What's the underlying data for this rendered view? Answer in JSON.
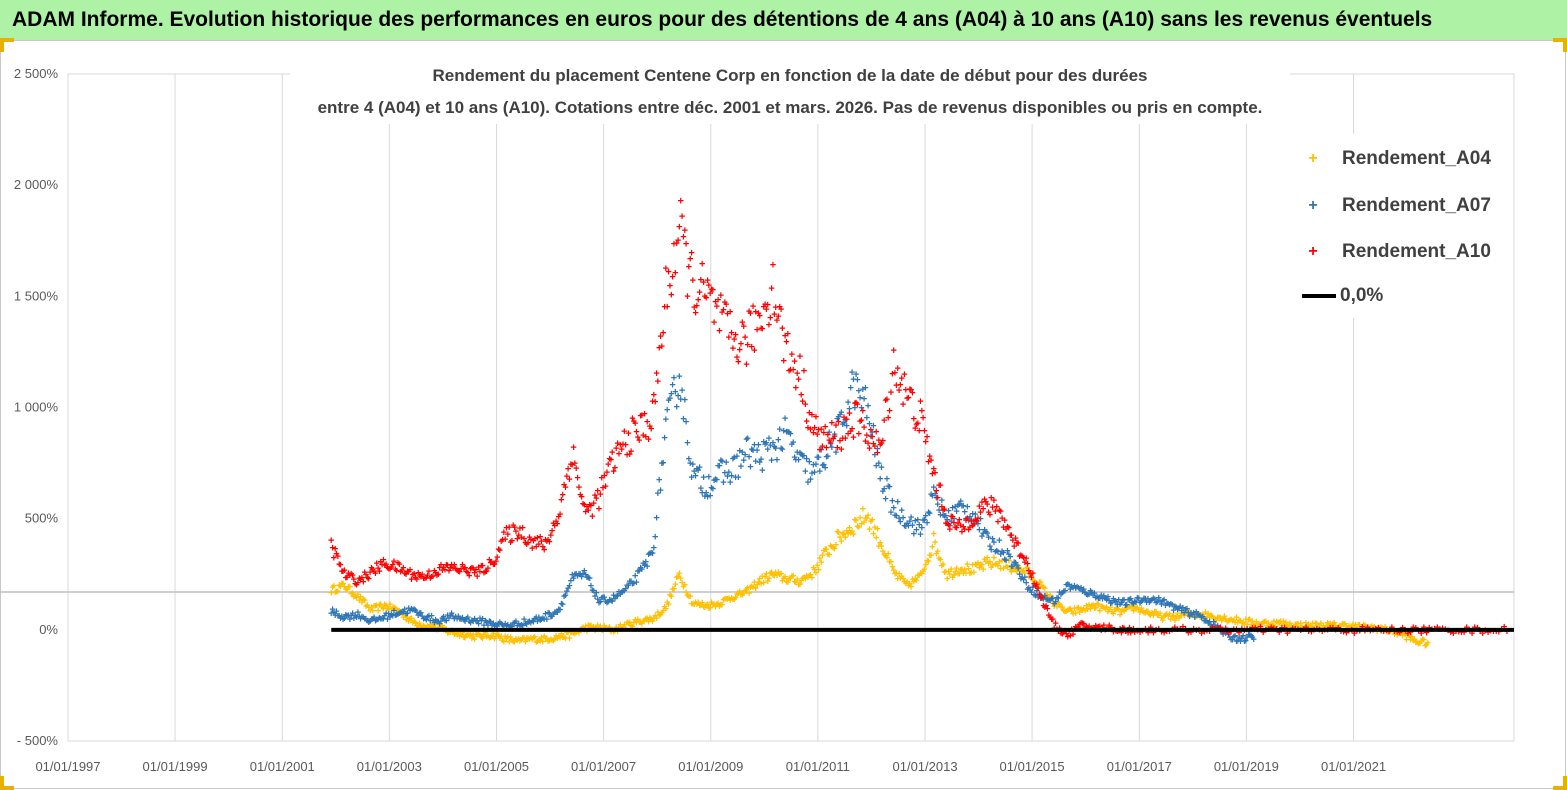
{
  "header": {
    "banner_title": "ADAM Informe. Evolution historique des performances en euros pour des détentions de 4 ans (A04) à 10 ans (A10) sans les revenus éventuels"
  },
  "colors": {
    "banner": "#aef2a6",
    "a04": "#ffc000",
    "a07": "#2e75b6",
    "a10": "#ff0000",
    "zero": "#000000",
    "grid": "#d9d9d9"
  },
  "chart_data": {
    "type": "scatter",
    "title_line1": "Rendement du placement Centene Corp en fonction de la date de début pour des durées",
    "title_line2": "entre 4 (A04) et 10 ans (A10). Cotations entre déc. 2001 et mars. 2026. Pas de revenus disponibles ou pris en compte.",
    "x_ticks": [
      "01/01/1997",
      "01/01/1999",
      "01/01/2001",
      "01/01/2003",
      "01/01/2005",
      "01/01/2007",
      "01/01/2009",
      "01/01/2011",
      "01/01/2013",
      "01/01/2015",
      "01/01/2017",
      "01/01/2019",
      "01/01/2021"
    ],
    "y_ticks": [
      "2 500%",
      "2 000%",
      "1 500%",
      "1 000%",
      "500%",
      "0%",
      "- 500%"
    ],
    "y_tick_values": [
      2500,
      2000,
      1500,
      1000,
      500,
      0,
      -500
    ],
    "xlim": [
      "1997-01-01",
      "2023-12-31"
    ],
    "ylim": [
      -500,
      2500
    ],
    "legend_position": "top-right",
    "series": [
      {
        "name": "Rendement_A04",
        "x": [
          "2001-12-01",
          "2002-03-01",
          "2002-06-01",
          "2002-09-01",
          "2002-12-01",
          "2003-03-01",
          "2003-06-01",
          "2003-09-01",
          "2003-12-01",
          "2004-03-01",
          "2004-06-01",
          "2004-09-01",
          "2004-12-01",
          "2005-03-01",
          "2005-06-01",
          "2005-09-01",
          "2005-12-01",
          "2006-03-01",
          "2006-06-01",
          "2006-09-01",
          "2006-12-01",
          "2007-03-01",
          "2007-06-01",
          "2007-09-01",
          "2007-12-01",
          "2008-03-01",
          "2008-06-01",
          "2008-09-01",
          "2008-12-01",
          "2009-03-01",
          "2009-06-01",
          "2009-09-01",
          "2009-12-01",
          "2010-03-01",
          "2010-06-01",
          "2010-09-01",
          "2010-12-01",
          "2011-03-01",
          "2011-06-01",
          "2011-09-01",
          "2011-12-01",
          "2012-03-01",
          "2012-06-01",
          "2012-09-01",
          "2012-12-01",
          "2013-03-01",
          "2013-06-01",
          "2013-09-01",
          "2013-12-01",
          "2014-03-01",
          "2014-06-01",
          "2014-09-01",
          "2014-12-01",
          "2015-03-01",
          "2015-06-01",
          "2015-09-01",
          "2015-12-01",
          "2016-03-01",
          "2016-06-01",
          "2016-09-01",
          "2016-12-01",
          "2017-03-01",
          "2017-06-01",
          "2017-09-01",
          "2017-12-01",
          "2018-03-01",
          "2018-06-01",
          "2018-09-01",
          "2018-12-01",
          "2019-03-01",
          "2019-06-01",
          "2019-09-01",
          "2019-12-01",
          "2020-03-01",
          "2020-06-01",
          "2020-09-01",
          "2020-12-01",
          "2021-03-01",
          "2021-06-01",
          "2021-09-01",
          "2021-12-01",
          "2022-03-01",
          "2022-06-01"
        ],
        "y": [
          180,
          200,
          150,
          90,
          110,
          90,
          40,
          20,
          10,
          -10,
          -20,
          -30,
          -20,
          -40,
          -50,
          -40,
          -40,
          -30,
          -20,
          10,
          10,
          0,
          20,
          40,
          50,
          100,
          250,
          120,
          110,
          120,
          150,
          170,
          220,
          250,
          230,
          220,
          260,
          350,
          420,
          470,
          520,
          400,
          260,
          200,
          240,
          400,
          250,
          280,
          270,
          300,
          300,
          280,
          260,
          200,
          120,
          80,
          90,
          110,
          90,
          80,
          100,
          80,
          60,
          60,
          70,
          70,
          60,
          50,
          40,
          30,
          30,
          30,
          20,
          20,
          20,
          20,
          20,
          10,
          10,
          0,
          -20,
          -50,
          -60
        ]
      },
      {
        "name": "Rendement_A07",
        "x": [
          "2001-12-01",
          "2002-03-01",
          "2002-06-01",
          "2002-09-01",
          "2002-12-01",
          "2003-03-01",
          "2003-06-01",
          "2003-09-01",
          "2003-12-01",
          "2004-03-01",
          "2004-06-01",
          "2004-09-01",
          "2004-12-01",
          "2005-03-01",
          "2005-06-01",
          "2005-09-01",
          "2005-12-01",
          "2006-03-01",
          "2006-06-01",
          "2006-09-01",
          "2006-12-01",
          "2007-03-01",
          "2007-06-01",
          "2007-09-01",
          "2007-12-01",
          "2008-03-01",
          "2008-06-01",
          "2008-09-01",
          "2008-12-01",
          "2009-03-01",
          "2009-06-01",
          "2009-09-01",
          "2009-12-01",
          "2010-03-01",
          "2010-06-01",
          "2010-09-01",
          "2010-12-01",
          "2011-03-01",
          "2011-06-01",
          "2011-09-01",
          "2011-12-01",
          "2012-03-01",
          "2012-06-01",
          "2012-09-01",
          "2012-12-01",
          "2013-03-01",
          "2013-06-01",
          "2013-09-01",
          "2013-12-01",
          "2014-03-01",
          "2014-06-01",
          "2014-09-01",
          "2014-12-01",
          "2015-03-01",
          "2015-06-01",
          "2015-09-01",
          "2015-12-01",
          "2016-03-01",
          "2016-06-01",
          "2016-09-01",
          "2016-12-01",
          "2017-03-01",
          "2017-06-01",
          "2017-09-01",
          "2017-12-01",
          "2018-03-01",
          "2018-06-01",
          "2018-09-01",
          "2018-12-01",
          "2019-03-01"
        ],
        "y": [
          80,
          60,
          70,
          40,
          60,
          80,
          90,
          60,
          40,
          60,
          50,
          40,
          30,
          20,
          30,
          40,
          60,
          90,
          230,
          250,
          130,
          140,
          180,
          250,
          350,
          900,
          1150,
          700,
          650,
          700,
          720,
          800,
          780,
          820,
          880,
          750,
          700,
          800,
          900,
          1100,
          1000,
          700,
          550,
          500,
          450,
          600,
          500,
          550,
          520,
          400,
          370,
          300,
          200,
          150,
          130,
          200,
          180,
          160,
          140,
          120,
          130,
          140,
          130,
          100,
          80,
          60,
          20,
          -30,
          -40,
          -30
        ]
      },
      {
        "name": "Rendement_A10",
        "x": [
          "2001-12-01",
          "2002-03-01",
          "2002-06-01",
          "2002-09-01",
          "2002-12-01",
          "2003-03-01",
          "2003-06-01",
          "2003-09-01",
          "2003-12-01",
          "2004-03-01",
          "2004-06-01",
          "2004-09-01",
          "2004-12-01",
          "2005-03-01",
          "2005-06-01",
          "2005-09-01",
          "2005-12-01",
          "2006-03-01",
          "2006-06-01",
          "2006-09-01",
          "2006-12-01",
          "2007-03-01",
          "2007-06-01",
          "2007-09-01",
          "2007-12-01",
          "2008-03-01",
          "2008-06-01",
          "2008-09-01",
          "2008-12-01",
          "2009-03-01",
          "2009-06-01",
          "2009-09-01",
          "2009-12-01",
          "2010-03-01",
          "2010-06-01",
          "2010-09-01",
          "2010-12-01",
          "2011-03-01",
          "2011-06-01",
          "2011-09-01",
          "2011-12-01",
          "2012-03-01",
          "2012-06-01",
          "2012-09-01",
          "2012-12-01",
          "2013-03-01",
          "2013-06-01",
          "2013-09-01",
          "2013-12-01",
          "2014-03-01",
          "2014-06-01",
          "2014-09-01",
          "2014-12-01",
          "2015-03-01",
          "2015-06-01",
          "2015-09-01",
          "2015-12-01",
          "2016-03-01",
          "2016-06-01",
          "2016-09-01",
          "2016-12-01",
          "2017-06-01",
          "2017-12-01",
          "2018-06-01",
          "2018-12-01",
          "2019-06-01",
          "2019-12-01",
          "2020-06-01",
          "2020-12-01",
          "2021-06-01",
          "2021-12-01",
          "2022-06-01",
          "2022-12-01",
          "2023-06-01",
          "2023-12-01"
        ],
        "y": [
          380,
          250,
          220,
          260,
          300,
          280,
          250,
          240,
          270,
          280,
          270,
          260,
          300,
          420,
          450,
          400,
          380,
          520,
          800,
          520,
          600,
          750,
          850,
          900,
          950,
          1500,
          1800,
          1550,
          1500,
          1400,
          1300,
          1300,
          1400,
          1550,
          1250,
          1150,
          900,
          850,
          880,
          950,
          900,
          800,
          1200,
          1050,
          950,
          700,
          500,
          450,
          520,
          560,
          520,
          400,
          300,
          150,
          20,
          -20,
          20,
          10,
          10,
          0,
          0,
          0,
          0,
          0,
          0,
          0,
          0,
          0,
          0,
          0,
          0,
          0,
          0,
          0,
          0
        ]
      },
      {
        "name": "0,0%",
        "x": [
          "2001-12-01",
          "2023-12-31"
        ],
        "y": [
          0,
          0
        ]
      }
    ]
  }
}
